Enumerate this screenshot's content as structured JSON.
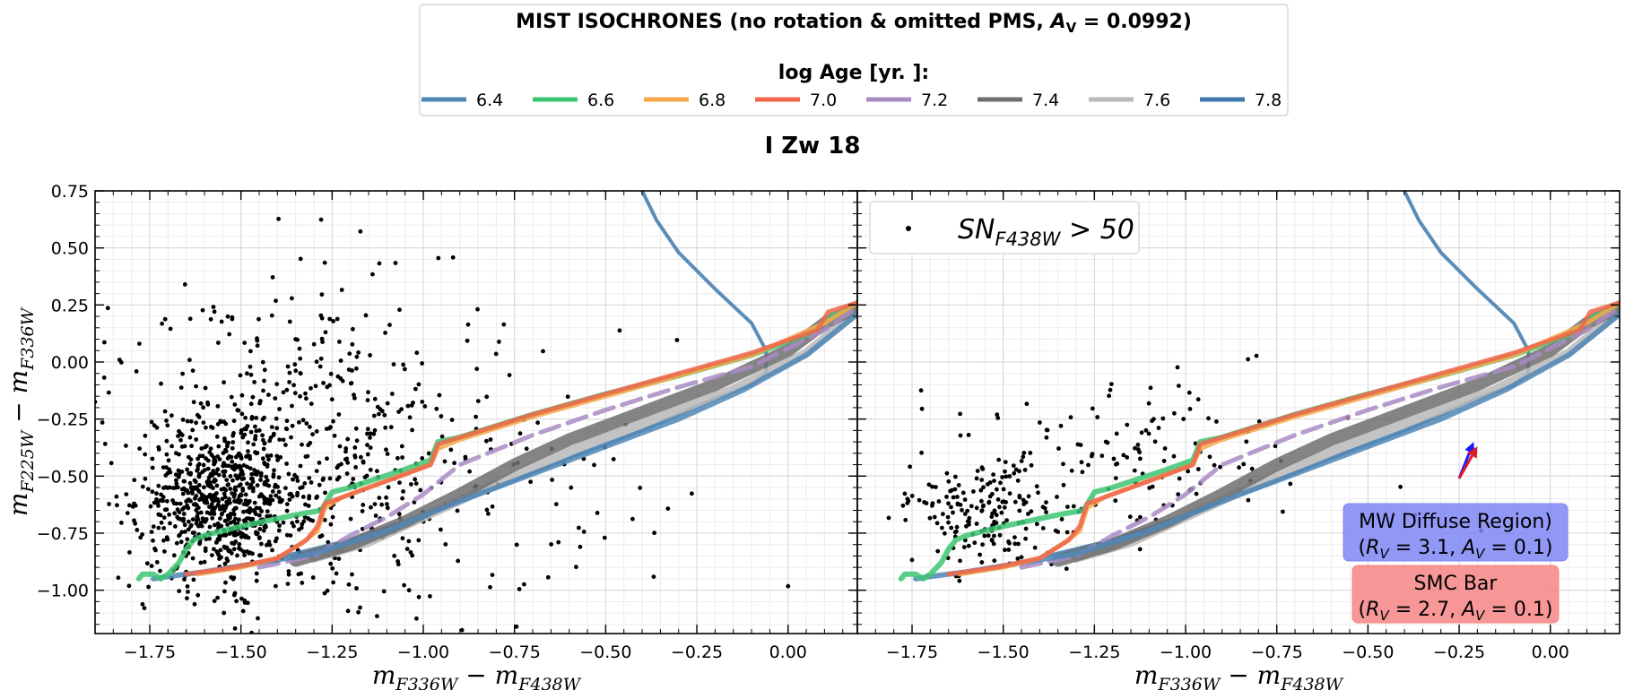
{
  "legend": {
    "title": "MIST ISOCHRONES (no rotation & omitted PMS, A_V = 0.0992)",
    "title_text": "MIST ISOCHRONES (no rotation & omitted PMS, ",
    "title_av": "A",
    "title_av_sub": "V",
    "title_av_val": " = 0.0992)",
    "subtitle": "log Age [yr. ]:",
    "entries": [
      {
        "label": "6.4",
        "color": "#4f86b5"
      },
      {
        "label": "6.6",
        "color": "#3dc671"
      },
      {
        "label": "6.8",
        "color": "#f5a94a"
      },
      {
        "label": "7.0",
        "color": "#f0664b"
      },
      {
        "label": "7.2",
        "color": "#a98bc4"
      },
      {
        "label": "7.4",
        "color": "#6e6e6e"
      },
      {
        "label": "7.6",
        "color": "#b9b9b9"
      },
      {
        "label": "7.8",
        "color": "#3f78ad"
      }
    ]
  },
  "suptitle": "I Zw 18",
  "panels": [
    {
      "id": "left",
      "xlabel": "m_F336W − m_F438W",
      "ylabel": "m_F225W − m_F336W"
    },
    {
      "id": "right",
      "xlabel": "m_F336W − m_F438W",
      "scatter_label": "SN_F438W > 50",
      "boxes": [
        {
          "line1": "MW Diffuse Region)",
          "line2": "(R_V = 3.1, A_V = 0.1)",
          "color": "#7f86f5"
        },
        {
          "line1": "SMC Bar",
          "line2": "(R_V = 2.7, A_V = 0.1)",
          "color": "#f78585"
        }
      ],
      "arrows": [
        {
          "name": "MW Diffuse Region",
          "from": [
            -0.25,
            -0.51
          ],
          "to": [
            -0.21,
            -0.35
          ],
          "color": "#1a1aff"
        },
        {
          "name": "SMC Bar",
          "from": [
            -0.25,
            -0.51
          ],
          "to": [
            -0.2,
            -0.37
          ],
          "color": "#e0182b"
        }
      ]
    }
  ],
  "chart_data": {
    "type": "scatter",
    "title": "I Zw 18",
    "xlabel": "m_F336W − m_F438W",
    "ylabel": "m_F225W − m_F336W",
    "xlim": [
      -1.9,
      0.19
    ],
    "ylim": [
      -1.19,
      0.75
    ],
    "xticks": [
      -1.75,
      -1.5,
      -1.25,
      -1.0,
      -0.75,
      -0.5,
      -0.25,
      0.0
    ],
    "xticklabels": [
      "−1.75",
      "−1.50",
      "−1.25",
      "−1.00",
      "−0.75",
      "−0.50",
      "−0.25",
      "0.00"
    ],
    "yticks": [
      0.75,
      0.5,
      0.25,
      0.0,
      -0.25,
      -0.5,
      -0.75,
      -1.0
    ],
    "yticklabels": [
      "0.75",
      "0.50",
      "0.25",
      "0.00",
      "−0.25",
      "−0.50",
      "−0.75",
      "−1.00"
    ],
    "grid": true,
    "isochrones": [
      {
        "name": "6.4",
        "points": [
          [
            -1.74,
            -0.95
          ],
          [
            -1.7,
            -0.94
          ],
          [
            -1.6,
            -0.92
          ],
          [
            -1.45,
            -0.88
          ],
          [
            -1.3,
            -0.84
          ],
          [
            -1.1,
            -0.74
          ],
          [
            -0.9,
            -0.61
          ],
          [
            -0.7,
            -0.49
          ],
          [
            -0.5,
            -0.37
          ],
          [
            -0.3,
            -0.25
          ],
          [
            -0.12,
            -0.12
          ],
          [
            0.05,
            0.03
          ],
          [
            0.19,
            0.21
          ]
        ]
      },
      {
        "name": "6.6",
        "points": [
          [
            -1.78,
            -0.95
          ],
          [
            -1.77,
            -0.93
          ],
          [
            -1.74,
            -0.93
          ],
          [
            -1.72,
            -0.95
          ],
          [
            -1.7,
            -0.93
          ],
          [
            -1.67,
            -0.88
          ],
          [
            -1.65,
            -0.82
          ],
          [
            -1.63,
            -0.78
          ],
          [
            -1.6,
            -0.76
          ],
          [
            -1.5,
            -0.72
          ],
          [
            -1.35,
            -0.67
          ],
          [
            -1.28,
            -0.65
          ],
          [
            -1.25,
            -0.57
          ],
          [
            -1.2,
            -0.55
          ],
          [
            -1.05,
            -0.47
          ],
          [
            -0.98,
            -0.43
          ],
          [
            -0.96,
            -0.35
          ],
          [
            -0.9,
            -0.33
          ],
          [
            -0.7,
            -0.23
          ],
          [
            -0.5,
            -0.14
          ],
          [
            -0.3,
            -0.06
          ],
          [
            -0.1,
            0.03
          ],
          [
            0.05,
            0.12
          ],
          [
            0.12,
            0.2
          ],
          [
            0.19,
            0.26
          ]
        ]
      },
      {
        "name": "6.8",
        "points": [
          [
            -1.62,
            -0.93
          ],
          [
            -1.5,
            -0.9
          ],
          [
            -1.4,
            -0.86
          ],
          [
            -1.33,
            -0.79
          ],
          [
            -1.29,
            -0.74
          ],
          [
            -1.27,
            -0.64
          ],
          [
            -1.22,
            -0.59
          ],
          [
            -1.1,
            -0.52
          ],
          [
            -0.98,
            -0.45
          ],
          [
            -0.96,
            -0.38
          ],
          [
            -0.9,
            -0.34
          ],
          [
            -0.7,
            -0.24
          ],
          [
            -0.5,
            -0.15
          ],
          [
            -0.3,
            -0.06
          ],
          [
            -0.1,
            0.03
          ],
          [
            0.1,
            0.17
          ],
          [
            0.19,
            0.26
          ]
        ]
      },
      {
        "name": "7.0",
        "points": [
          [
            -1.65,
            -0.93
          ],
          [
            -1.52,
            -0.9
          ],
          [
            -1.4,
            -0.86
          ],
          [
            -1.32,
            -0.78
          ],
          [
            -1.29,
            -0.72
          ],
          [
            -1.27,
            -0.62
          ],
          [
            -1.2,
            -0.58
          ],
          [
            -1.08,
            -0.51
          ],
          [
            -0.98,
            -0.45
          ],
          [
            -0.96,
            -0.36
          ],
          [
            -0.88,
            -0.32
          ],
          [
            -0.7,
            -0.23
          ],
          [
            -0.5,
            -0.14
          ],
          [
            -0.3,
            -0.05
          ],
          [
            -0.1,
            0.04
          ],
          [
            0.08,
            0.14
          ],
          [
            0.11,
            0.22
          ],
          [
            0.19,
            0.26
          ]
        ]
      },
      {
        "name": "7.2",
        "points": [
          [
            -1.45,
            -0.9
          ],
          [
            -1.3,
            -0.85
          ],
          [
            -1.2,
            -0.76
          ],
          [
            -1.1,
            -0.68
          ],
          [
            -1.0,
            -0.58
          ],
          [
            -0.9,
            -0.45
          ],
          [
            -0.7,
            -0.32
          ],
          [
            -0.5,
            -0.21
          ],
          [
            -0.3,
            -0.11
          ],
          [
            -0.1,
            -0.02
          ],
          [
            0.1,
            0.14
          ],
          [
            0.19,
            0.24
          ]
        ]
      },
      {
        "name": "7.4",
        "points": [
          [
            -1.35,
            -0.87
          ],
          [
            -1.2,
            -0.8
          ],
          [
            -1.05,
            -0.7
          ],
          [
            -0.9,
            -0.58
          ],
          [
            -0.75,
            -0.45
          ],
          [
            -0.6,
            -0.34
          ],
          [
            -0.4,
            -0.22
          ],
          [
            -0.2,
            -0.1
          ],
          [
            0.0,
            0.05
          ],
          [
            0.1,
            0.17
          ],
          [
            0.19,
            0.24
          ]
        ]
      },
      {
        "name": "7.6",
        "points": [
          [
            -1.3,
            -0.86
          ],
          [
            -1.15,
            -0.79
          ],
          [
            -1.0,
            -0.68
          ],
          [
            -0.85,
            -0.57
          ],
          [
            -0.7,
            -0.46
          ],
          [
            -0.55,
            -0.36
          ],
          [
            -0.35,
            -0.24
          ],
          [
            -0.15,
            -0.12
          ],
          [
            0.05,
            0.04
          ],
          [
            0.19,
            0.22
          ]
        ]
      },
      {
        "name": "7.8",
        "points": [
          [
            -1.38,
            -0.85
          ],
          [
            -1.2,
            -0.78
          ],
          [
            -1.0,
            -0.67
          ],
          [
            -0.8,
            -0.55
          ],
          [
            -0.6,
            -0.42
          ],
          [
            -0.4,
            -0.3
          ],
          [
            -0.2,
            -0.16
          ],
          [
            -0.1,
            -0.1
          ],
          [
            -0.06,
            -0.05
          ],
          [
            -0.06,
            0.05
          ],
          [
            -0.1,
            0.17
          ],
          [
            -0.2,
            0.32
          ],
          [
            -0.3,
            0.48
          ],
          [
            -0.36,
            0.62
          ],
          [
            -0.4,
            0.75
          ]
        ]
      }
    ],
    "scatter": [
      {
        "panel": "left",
        "sample": "all sources",
        "density_regions": [
          {
            "cx": -1.55,
            "cy": -0.62,
            "sx": 0.11,
            "sy": 0.16,
            "n": 620
          },
          {
            "cx": -1.4,
            "cy": -0.42,
            "sx": 0.23,
            "sy": 0.32,
            "n": 360
          },
          {
            "cx": -1.15,
            "cy": -0.55,
            "sx": 0.28,
            "sy": 0.3,
            "n": 140
          },
          {
            "cx": -0.85,
            "cy": -0.45,
            "sx": 0.35,
            "sy": 0.35,
            "n": 80
          },
          {
            "cx": -1.45,
            "cy": 0.2,
            "sx": 0.3,
            "sy": 0.25,
            "n": 60
          }
        ]
      },
      {
        "panel": "right",
        "sample": "SN_F438W > 50",
        "density_regions": [
          {
            "cx": -1.55,
            "cy": -0.66,
            "sx": 0.11,
            "sy": 0.12,
            "n": 180
          },
          {
            "cx": -1.3,
            "cy": -0.45,
            "sx": 0.2,
            "sy": 0.18,
            "n": 90
          },
          {
            "cx": -1.0,
            "cy": -0.35,
            "sx": 0.15,
            "sy": 0.15,
            "n": 35
          },
          {
            "cx": -0.7,
            "cy": -0.4,
            "sx": 0.22,
            "sy": 0.28,
            "n": 15
          }
        ]
      }
    ]
  }
}
